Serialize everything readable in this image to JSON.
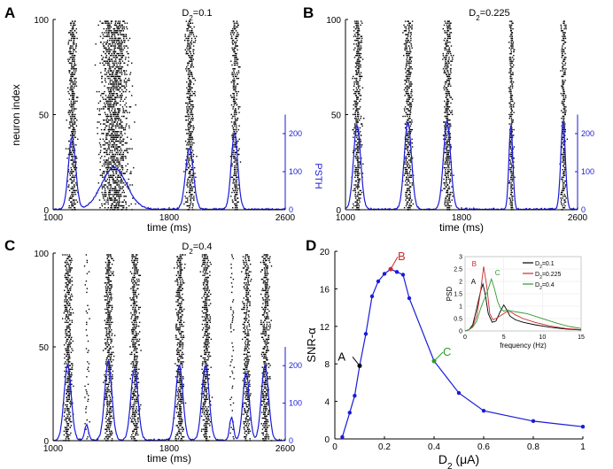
{
  "colors": {
    "raster": "#000000",
    "psth": "#1a1adb",
    "snr": "#1a1adb",
    "markA": "#000000",
    "markB": "#cc2a2a",
    "markC": "#2e9a2e"
  },
  "panels": {
    "A": {
      "letter": "A",
      "condition": {
        "pre": "D",
        "sub": "2",
        "post": "=0.1"
      },
      "bursts": [
        1130,
        1420,
        1940,
        2250
      ],
      "widths": [
        55,
        190,
        60,
        50
      ],
      "psth_peaks": [
        190,
        110,
        160,
        200
      ]
    },
    "B": {
      "letter": "B",
      "condition": {
        "pre": "D",
        "sub": "2",
        "post": "=0.225"
      },
      "bursts": [
        1080,
        1430,
        1700,
        2140,
        2500
      ],
      "widths": [
        55,
        55,
        55,
        30,
        35
      ],
      "psth_peaks": [
        220,
        230,
        230,
        220,
        230
      ]
    },
    "C": {
      "letter": "C",
      "condition": {
        "pre": "D",
        "sub": "2",
        "post": "=0.4"
      },
      "bursts": [
        1100,
        1230,
        1380,
        1560,
        1870,
        2050,
        2230,
        2330,
        2460
      ],
      "widths": [
        55,
        30,
        55,
        55,
        55,
        55,
        30,
        50,
        55
      ],
      "psth_peaks": [
        200,
        40,
        210,
        190,
        200,
        200,
        60,
        180,
        200
      ]
    }
  },
  "raster_axes": {
    "ylabel": "neuron index",
    "xlabel": "time (ms)",
    "x_ticks": [
      "1000",
      "1800",
      "2600"
    ],
    "y_ticks": [
      "0",
      "50",
      "100"
    ],
    "psth_label": "PSTH",
    "psth_ticks": [
      "0",
      "100",
      "200"
    ]
  },
  "chart_data": [
    {
      "type": "line",
      "panel": "D",
      "letter": "D",
      "title": "",
      "xlabel": "D2 (μA)",
      "xlabel_parts": {
        "pre": "D",
        "sub": "2",
        "post": " (μA)"
      },
      "ylabel": "SNR-α",
      "xlim": [
        0,
        1
      ],
      "ylim": [
        0,
        20
      ],
      "x_ticks": [
        "0",
        "0.2",
        "0.4",
        "0.6",
        "0.8",
        "1"
      ],
      "y_ticks": [
        "0",
        "4",
        "8",
        "12",
        "16",
        "20"
      ],
      "x": [
        0.03,
        0.06,
        0.08,
        0.1,
        0.125,
        0.15,
        0.175,
        0.2,
        0.225,
        0.25,
        0.275,
        0.3,
        0.4,
        0.5,
        0.6,
        0.8,
        1.0
      ],
      "y": [
        0.2,
        2.8,
        4.6,
        7.8,
        11.2,
        15.2,
        16.8,
        17.6,
        18.1,
        17.8,
        17.5,
        15.0,
        8.3,
        4.9,
        3.0,
        1.9,
        1.3
      ],
      "annotations": [
        {
          "label": "A",
          "x": 0.1,
          "y": 7.8
        },
        {
          "label": "B",
          "x": 0.225,
          "y": 18.1
        },
        {
          "label": "C",
          "x": 0.4,
          "y": 8.3
        }
      ]
    },
    {
      "type": "line",
      "panel": "D-inset",
      "xlabel": "frequency (Hz)",
      "ylabel": "PSD",
      "xlim": [
        0,
        15
      ],
      "ylim": [
        0,
        3
      ],
      "x_ticks": [
        "0",
        "5",
        "10",
        "15"
      ],
      "y_ticks": [
        "0",
        "0.5",
        "1",
        "1.5",
        "2",
        "2.5",
        "3"
      ],
      "series": [
        {
          "name": "D2=0.1",
          "legend": {
            "pre": "D",
            "sub": "2",
            "post": "=0.1"
          },
          "color": "#000000",
          "x": [
            0,
            0.5,
            1,
            1.5,
            2,
            2.3,
            2.6,
            3,
            3.5,
            4,
            4.5,
            5,
            5.3,
            5.8,
            6.5,
            7.5,
            9,
            11,
            13,
            15
          ],
          "y": [
            0,
            0.05,
            0.25,
            0.9,
            1.6,
            1.9,
            1.5,
            0.7,
            0.35,
            0.4,
            0.75,
            1.05,
            0.9,
            0.6,
            0.45,
            0.35,
            0.25,
            0.15,
            0.08,
            0.04
          ]
        },
        {
          "name": "D2=0.225",
          "legend": {
            "pre": "D",
            "sub": "2",
            "post": "=0.225"
          },
          "color": "#cc2a2a",
          "x": [
            0,
            0.5,
            1,
            1.5,
            2,
            2.4,
            2.8,
            3.2,
            3.6,
            4,
            4.5,
            5,
            5.5,
            6,
            6.5,
            7.5,
            9,
            11,
            13,
            15
          ],
          "y": [
            0,
            0.05,
            0.2,
            0.6,
            1.6,
            2.6,
            1.8,
            0.7,
            0.45,
            0.5,
            0.6,
            0.7,
            0.8,
            0.75,
            0.65,
            0.5,
            0.35,
            0.2,
            0.1,
            0.05
          ]
        },
        {
          "name": "D2=0.4",
          "legend": {
            "pre": "D",
            "sub": "2",
            "post": "=0.4"
          },
          "color": "#2e9a2e",
          "x": [
            0,
            0.5,
            1,
            1.5,
            2,
            2.5,
            3,
            3.4,
            3.8,
            4.2,
            4.6,
            5,
            5.5,
            6,
            7,
            8,
            9,
            10.5,
            12,
            13.5,
            15
          ],
          "y": [
            0,
            0.05,
            0.15,
            0.4,
            0.9,
            1.3,
            1.7,
            2.1,
            1.7,
            1.2,
            0.9,
            0.8,
            0.85,
            0.8,
            0.75,
            0.7,
            0.6,
            0.45,
            0.3,
            0.18,
            0.1
          ]
        }
      ],
      "inset_labels": [
        "A",
        "B",
        "C"
      ]
    }
  ]
}
